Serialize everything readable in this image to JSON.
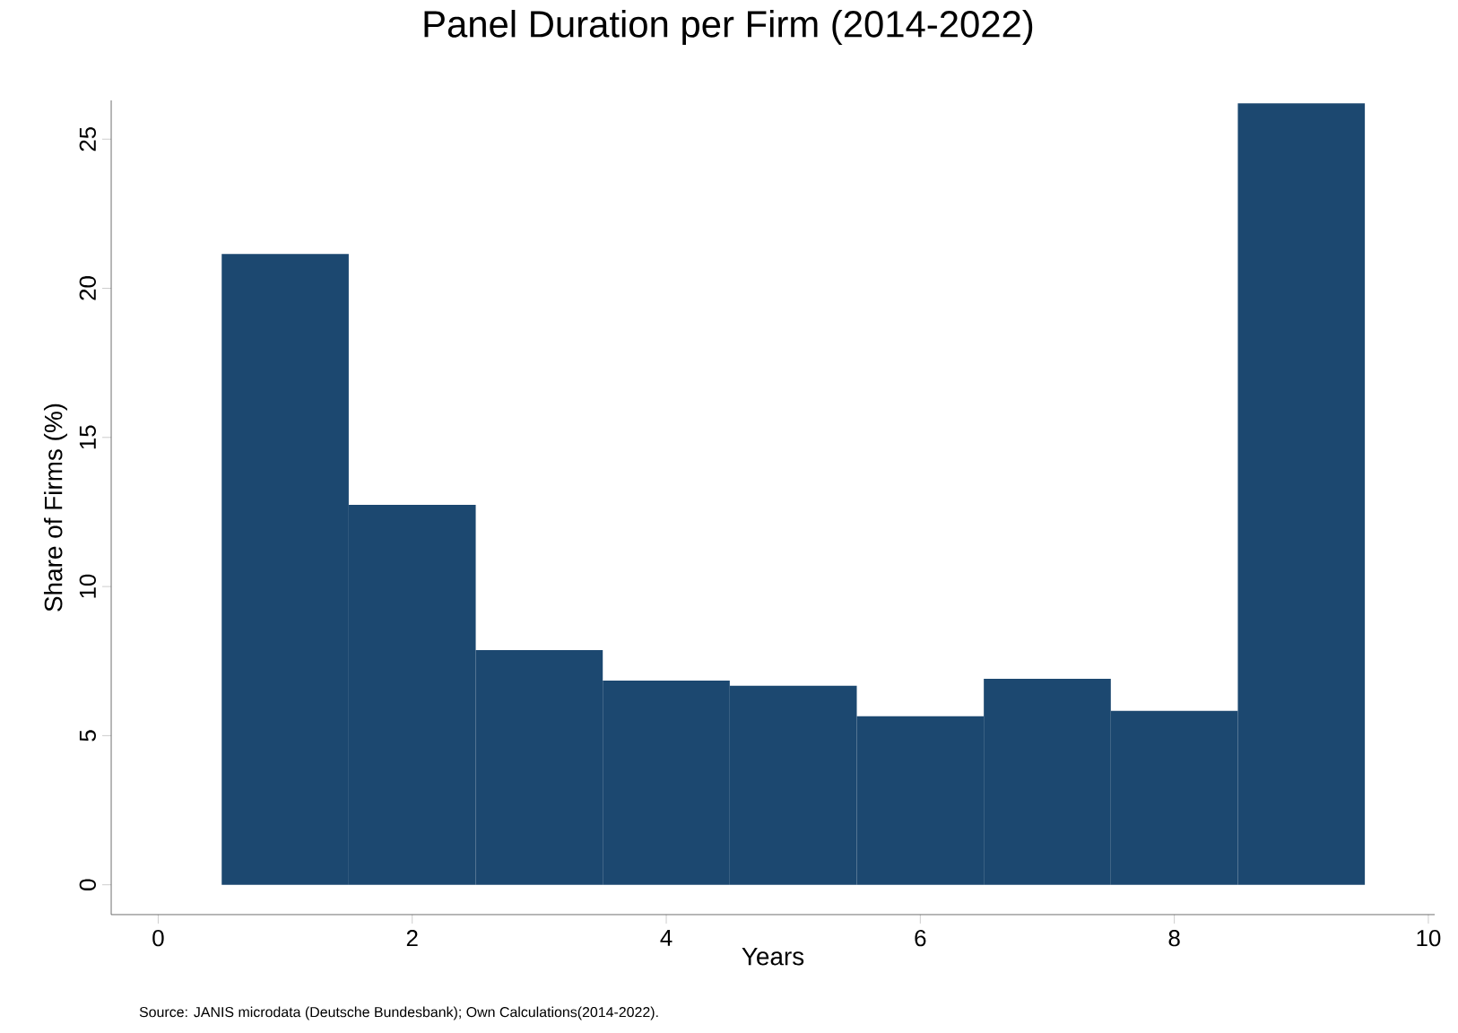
{
  "chart_data": {
    "type": "histogram",
    "title": "Panel Duration per Firm (2014-2022)",
    "xlabel": "Years",
    "ylabel": "Share of Firms (%)",
    "bins": [
      0.5,
      1.5,
      2.5,
      3.5,
      4.5,
      5.5,
      6.5,
      7.5,
      8.5,
      9.5
    ],
    "values": [
      21.15,
      12.74,
      7.87,
      6.85,
      6.67,
      5.65,
      6.91,
      5.83,
      26.2
    ],
    "color": "#1c4870",
    "xlim": [
      -0.37,
      10.05
    ],
    "ylim": [
      -1.0,
      26.3
    ],
    "xticks": [
      0,
      2,
      4,
      6,
      8,
      10
    ],
    "yticks": [
      0,
      5,
      10,
      15,
      20,
      25
    ],
    "annotations": [
      "Source: JANIS microdata (Deutsche Bundesbank); Own Calculations(2014-2022)."
    ]
  }
}
